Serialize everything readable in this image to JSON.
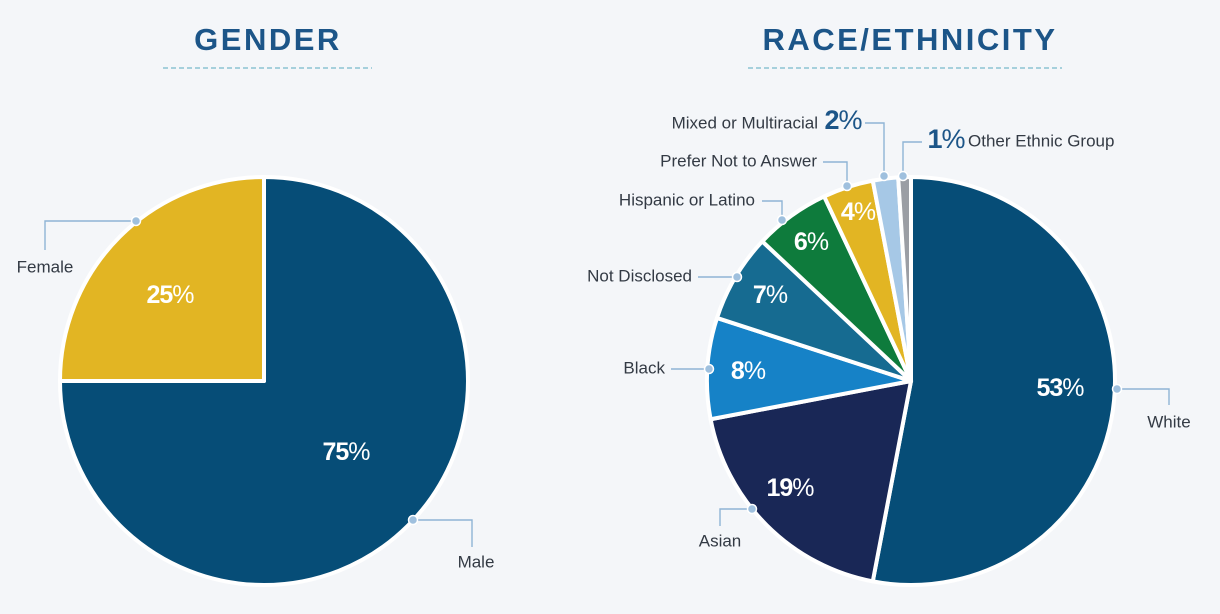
{
  "colors": {
    "title": "#1c5588",
    "leader": "#8fb4d6",
    "divider": "#8cc4d3"
  },
  "chart_data": [
    {
      "type": "pie",
      "title": "GENDER",
      "slices": [
        {
          "label": "Male",
          "value": 75,
          "display": "75%",
          "color": "#064d77"
        },
        {
          "label": "Female",
          "value": 25,
          "display": "25%",
          "color": "#e2b523"
        }
      ]
    },
    {
      "type": "pie",
      "title": "RACE/ETHNICITY",
      "slices": [
        {
          "label": "White",
          "value": 53,
          "display": "53%",
          "color": "#064d77"
        },
        {
          "label": "Asian",
          "value": 19,
          "display": "19%",
          "color": "#192756"
        },
        {
          "label": "Black",
          "value": 8,
          "display": "8%",
          "color": "#1682c7"
        },
        {
          "label": "Not Disclosed",
          "value": 7,
          "display": "7%",
          "color": "#166b91"
        },
        {
          "label": "Hispanic or Latino",
          "value": 6,
          "display": "6%",
          "color": "#0e7b3c"
        },
        {
          "label": "Prefer Not to Answer",
          "value": 4,
          "display": "4%",
          "color": "#e2b523"
        },
        {
          "label": "Mixed or Multiracial",
          "value": 2,
          "display": "2%",
          "color": "#a6c8e6"
        },
        {
          "label": "Other Ethnic Group",
          "value": 1,
          "display": "1%",
          "color": "#9b9ea4"
        }
      ]
    }
  ]
}
